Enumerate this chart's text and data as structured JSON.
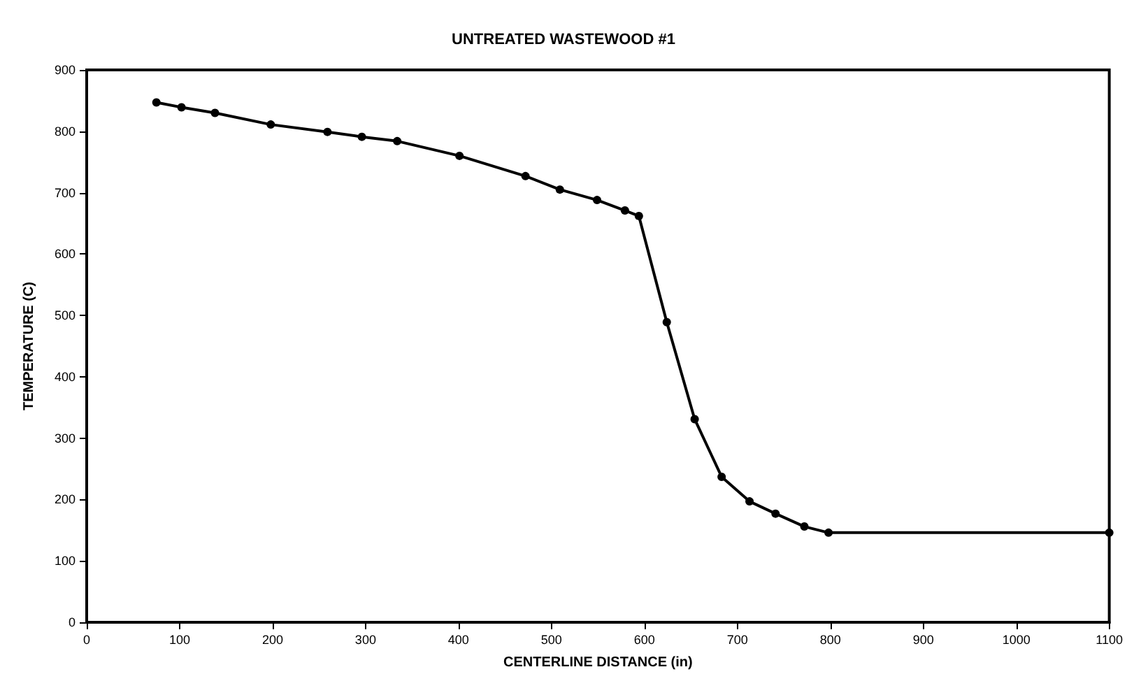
{
  "chart_data": {
    "type": "line",
    "title": "UNTREATED WASTEWOOD #1",
    "xlabel": "CENTERLINE DISTANCE (in)",
    "ylabel": "TEMPERATURE (C)",
    "x": [
      75,
      102,
      138,
      198,
      259,
      296,
      334,
      401,
      472,
      509,
      549,
      579,
      594,
      624,
      654,
      683,
      713,
      741,
      772,
      798,
      1100
    ],
    "series": [
      {
        "color": "#000000",
        "values": [
          847,
          839,
          830,
          811,
          799,
          791,
          784,
          760,
          727,
          705,
          688,
          671,
          662,
          489,
          331,
          237,
          197,
          177,
          156,
          146,
          146
        ]
      }
    ],
    "xlim": [
      0,
      1100
    ],
    "xticks": [
      0,
      100,
      200,
      300,
      400,
      500,
      600,
      700,
      800,
      900,
      1000,
      1100
    ],
    "ylim": [
      0,
      900
    ],
    "yticks": [
      0,
      100,
      200,
      300,
      400,
      500,
      600,
      700,
      800,
      900
    ],
    "grid": false,
    "marker": "circle",
    "line_style": "solid"
  }
}
